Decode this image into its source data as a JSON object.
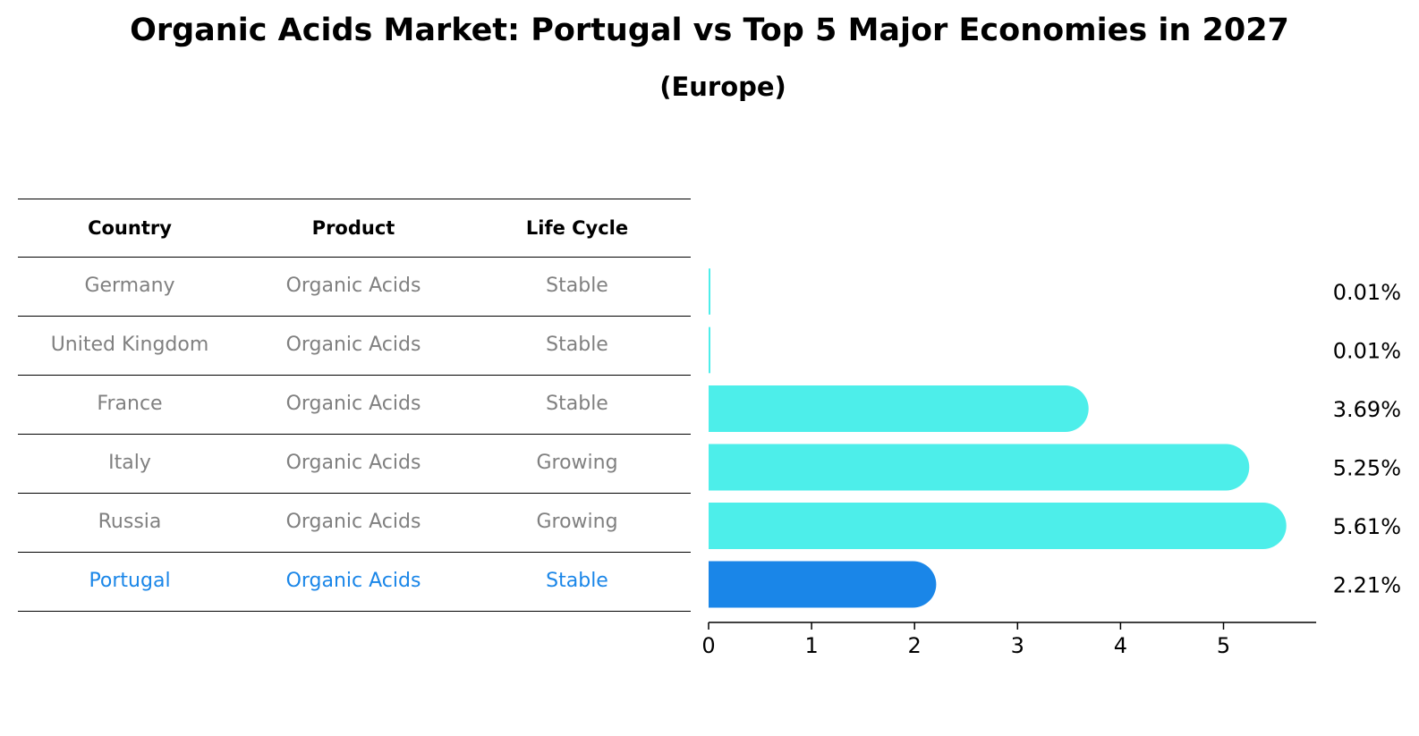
{
  "title": "Organic Acids Market: Portugal vs Top 5 Major Economies in 2027",
  "subtitle": "(Europe)",
  "table": {
    "headers": [
      "Country",
      "Product",
      "Life Cycle"
    ],
    "rows": [
      {
        "country": "Germany",
        "product": "Organic Acids",
        "life_cycle": "Stable"
      },
      {
        "country": "United Kingdom",
        "product": "Organic Acids",
        "life_cycle": "Stable"
      },
      {
        "country": "France",
        "product": "Organic Acids",
        "life_cycle": "Stable"
      },
      {
        "country": "Italy",
        "product": "Organic Acids",
        "life_cycle": "Growing"
      },
      {
        "country": "Russia",
        "product": "Organic Acids",
        "life_cycle": "Growing"
      },
      {
        "country": "Portugal",
        "product": "Organic Acids",
        "life_cycle": "Stable"
      }
    ],
    "highlight_row": "Portugal",
    "highlight_color": "#1a86e8",
    "text_color": "#808080"
  },
  "chart_data": {
    "type": "bar",
    "orientation": "horizontal",
    "categories": [
      "Germany",
      "United Kingdom",
      "France",
      "Italy",
      "Russia",
      "Portugal"
    ],
    "values": [
      0.01,
      0.01,
      3.69,
      5.25,
      5.61,
      2.21
    ],
    "value_labels": [
      "0.01%",
      "0.01%",
      "3.69%",
      "5.25%",
      "5.61%",
      "2.21%"
    ],
    "x_ticks": [
      0,
      1,
      2,
      3,
      4,
      5
    ],
    "xlim": [
      0,
      5.9
    ],
    "bar_color": "#4deeea",
    "highlight_color": "#1a86e8",
    "highlight_category": "Portugal",
    "grid": false
  }
}
